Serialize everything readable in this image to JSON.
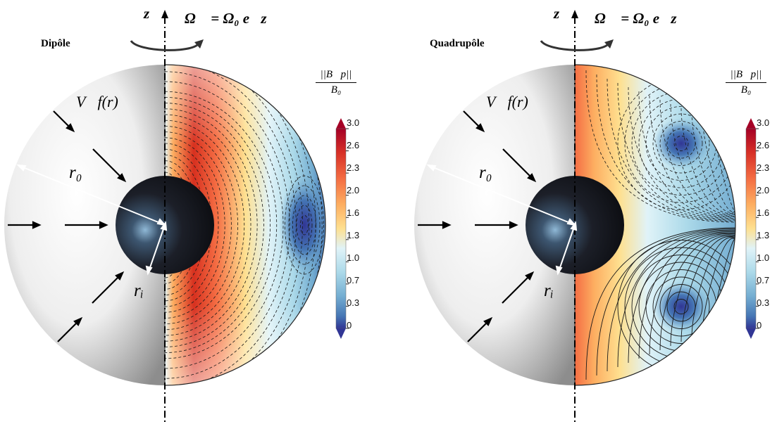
{
  "axis": {
    "name": "z",
    "rotation": "Ω⃗ = Ω₀ e⃗z"
  },
  "labels": {
    "velocity": "V⃗f(r)",
    "outer_radius": "r₀",
    "inner_radius": "rᵢ"
  },
  "colorbar": {
    "numerator": "||B⃗p||",
    "denominator": "B₀",
    "ticks": [
      "3.0",
      "2.6",
      "2.3",
      "2.0",
      "1.6",
      "1.3",
      "1.0",
      "0.7",
      "0.3",
      "0"
    ],
    "colors": [
      "#8b0a1a",
      "#d7301f",
      "#f46d43",
      "#fdae61",
      "#fee090",
      "#e0f3f8",
      "#abd9e9",
      "#74add1",
      "#4575b4",
      "#313695"
    ]
  },
  "panels": [
    {
      "title": "Dipôle",
      "configuration": "dipole"
    },
    {
      "title": "Quadrupôle",
      "configuration": "quadrupole"
    }
  ]
}
